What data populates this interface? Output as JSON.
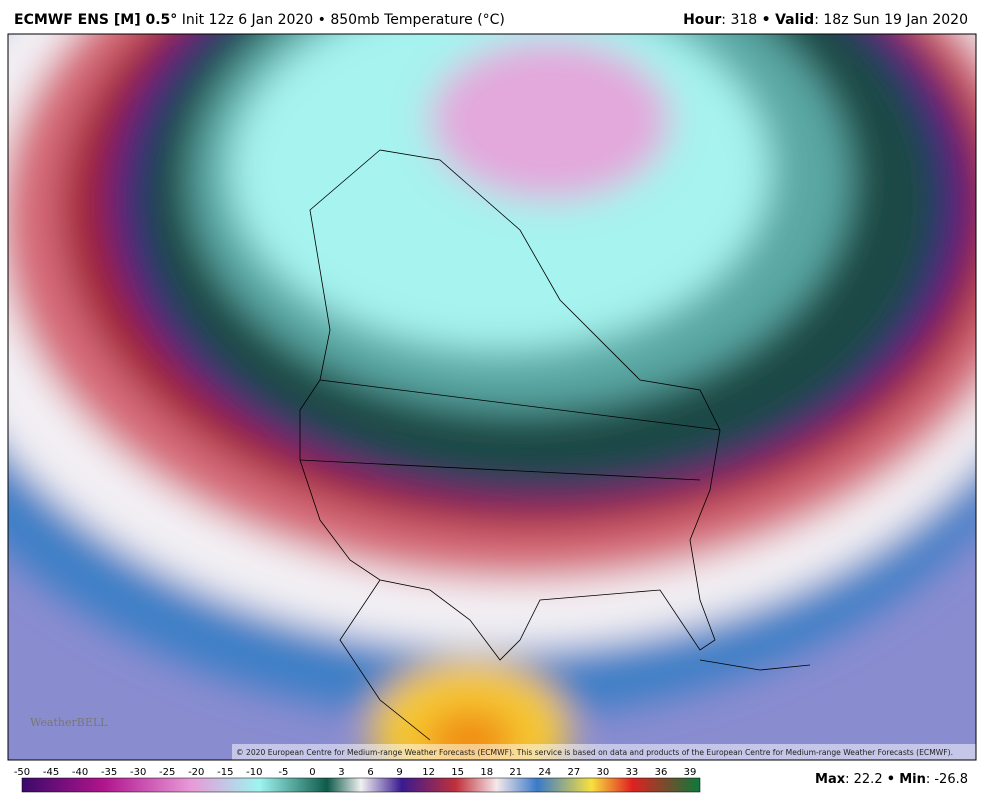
{
  "header": {
    "model": "ECMWF ENS [M] 0.5°",
    "details": "Init 12z 6 Jan 2020 • 850mb Temperature (°C)",
    "hour_label": "Hour",
    "hour": 318,
    "sep": "•",
    "valid_label": "Valid",
    "valid": "18z Sun 19 Jan 2020"
  },
  "logo": "WeatherBELL",
  "copyright": "© 2020 European Centre for Medium-range Weather Forecasts (ECMWF). This service is based on data and products of the European Centre for Medium-range Weather Forecasts (ECMWF).",
  "colorbar": {
    "ticks": [
      -50,
      -45,
      -40,
      -35,
      -30,
      -25,
      -20,
      -15,
      -10,
      -5,
      0,
      3,
      6,
      9,
      12,
      15,
      18,
      21,
      24,
      27,
      30,
      33,
      36,
      39
    ]
  },
  "stats": {
    "max_label": "Max",
    "max": 22.2,
    "sep": "•",
    "min_label": "Min",
    "min": -26.8
  }
}
